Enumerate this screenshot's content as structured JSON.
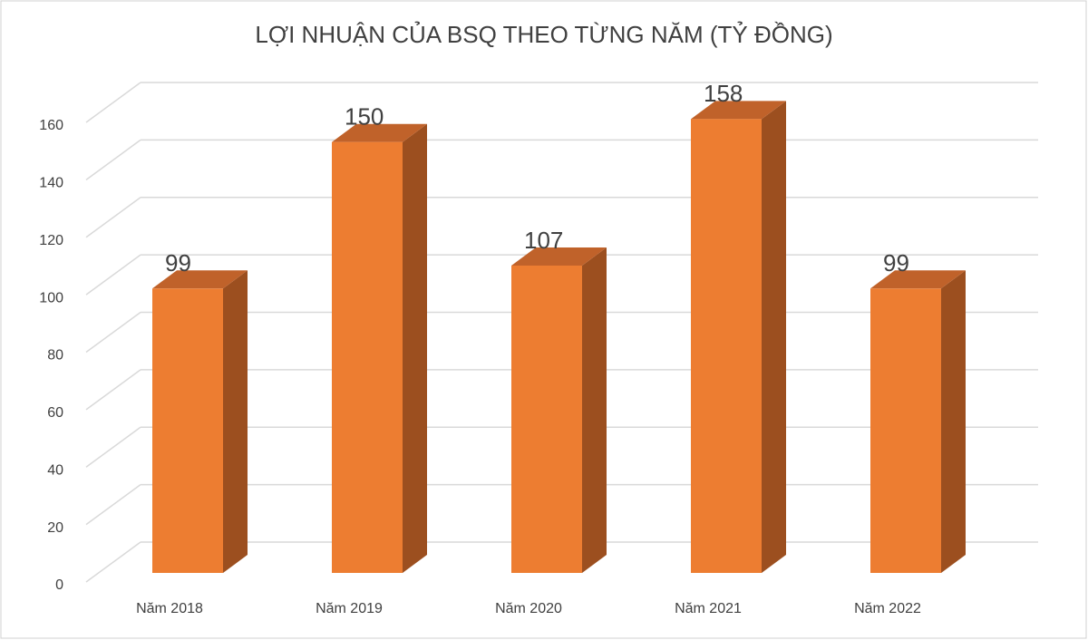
{
  "chart_data": {
    "type": "bar3d",
    "title": "LỢI NHUẬN CỦA BSQ THEO TỪNG NĂM (TỶ ĐỒNG)",
    "categories": [
      "Năm 2018",
      "Năm 2019",
      "Năm 2020",
      "Năm 2021",
      "Năm 2022"
    ],
    "values": [
      99,
      150,
      107,
      158,
      99
    ],
    "color": "#ed7d31",
    "ylim": [
      0,
      160
    ],
    "yticks": [
      0,
      20,
      40,
      60,
      80,
      100,
      120,
      140,
      160
    ],
    "grid": true
  }
}
